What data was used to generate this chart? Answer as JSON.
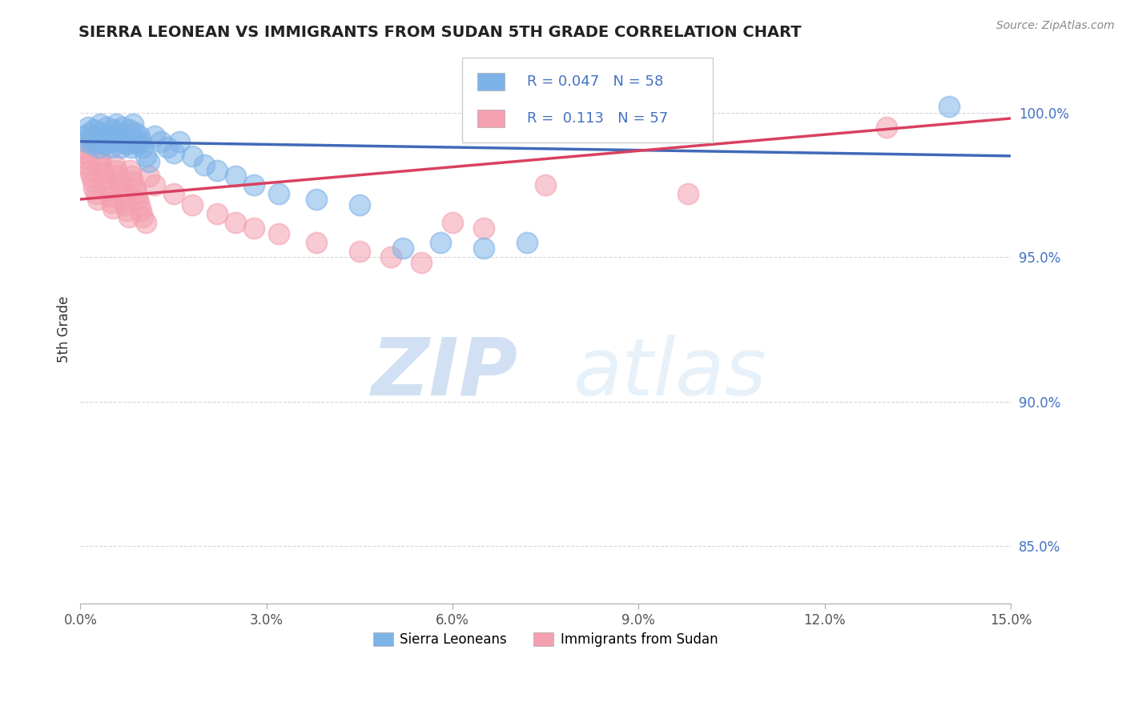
{
  "title": "SIERRA LEONEAN VS IMMIGRANTS FROM SUDAN 5TH GRADE CORRELATION CHART",
  "source": "Source: ZipAtlas.com",
  "ylabel": "5th Grade",
  "xlim": [
    0.0,
    15.0
  ],
  "ylim": [
    83.0,
    102.0
  ],
  "yticks": [
    85.0,
    90.0,
    95.0,
    100.0
  ],
  "ytick_labels": [
    "85.0%",
    "90.0%",
    "95.0%",
    "100.0%"
  ],
  "xticks": [
    0.0,
    3.0,
    6.0,
    9.0,
    12.0,
    15.0
  ],
  "xtick_labels": [
    "0.0%",
    "3.0%",
    "6.0%",
    "9.0%",
    "12.0%",
    "15.0%"
  ],
  "legend_r_blue": "0.047",
  "legend_n_blue": "58",
  "legend_r_pink": "0.113",
  "legend_n_pink": "57",
  "blue_color": "#7EB3E8",
  "pink_color": "#F4A0B0",
  "blue_line_color": "#4169B8",
  "pink_line_color": "#D94060",
  "watermark_zip": "ZIP",
  "watermark_atlas": "atlas",
  "blue_scatter_x": [
    0.05,
    0.1,
    0.12,
    0.15,
    0.18,
    0.2,
    0.22,
    0.25,
    0.28,
    0.3,
    0.32,
    0.35,
    0.38,
    0.4,
    0.42,
    0.45,
    0.48,
    0.5,
    0.52,
    0.55,
    0.58,
    0.6,
    0.62,
    0.65,
    0.68,
    0.7,
    0.72,
    0.75,
    0.78,
    0.8,
    0.82,
    0.85,
    0.88,
    0.9,
    0.92,
    0.95,
    0.98,
    1.0,
    1.05,
    1.1,
    1.2,
    1.3,
    1.4,
    1.5,
    1.6,
    1.8,
    2.0,
    2.2,
    2.5,
    2.8,
    3.2,
    3.8,
    4.5,
    5.2,
    5.8,
    6.5,
    7.2,
    14.0
  ],
  "blue_scatter_y": [
    99.2,
    99.0,
    99.5,
    99.3,
    99.1,
    98.9,
    99.4,
    99.2,
    99.0,
    98.8,
    99.6,
    99.3,
    99.1,
    98.9,
    99.5,
    99.2,
    99.0,
    98.8,
    99.4,
    99.1,
    99.6,
    99.3,
    99.0,
    98.8,
    99.5,
    99.2,
    99.0,
    98.9,
    99.4,
    99.1,
    98.8,
    99.6,
    99.3,
    99.0,
    98.9,
    99.2,
    99.0,
    98.8,
    98.5,
    98.3,
    99.2,
    99.0,
    98.8,
    98.6,
    99.0,
    98.5,
    98.2,
    98.0,
    97.8,
    97.5,
    97.2,
    97.0,
    96.8,
    95.3,
    95.5,
    95.3,
    95.5,
    100.2
  ],
  "pink_scatter_x": [
    0.05,
    0.08,
    0.1,
    0.12,
    0.15,
    0.18,
    0.2,
    0.22,
    0.25,
    0.28,
    0.3,
    0.32,
    0.35,
    0.38,
    0.4,
    0.42,
    0.45,
    0.48,
    0.5,
    0.52,
    0.55,
    0.58,
    0.6,
    0.62,
    0.65,
    0.68,
    0.7,
    0.72,
    0.75,
    0.78,
    0.8,
    0.82,
    0.85,
    0.88,
    0.9,
    0.92,
    0.95,
    0.98,
    1.0,
    1.05,
    1.1,
    1.2,
    1.5,
    1.8,
    2.2,
    2.5,
    2.8,
    3.2,
    3.8,
    4.5,
    5.0,
    5.5,
    6.0,
    6.5,
    7.5,
    9.8,
    13.0
  ],
  "pink_scatter_y": [
    98.8,
    98.6,
    98.4,
    98.2,
    98.0,
    97.8,
    97.6,
    97.4,
    97.2,
    97.0,
    98.5,
    98.3,
    98.1,
    97.9,
    97.7,
    97.5,
    97.3,
    97.1,
    96.9,
    96.7,
    98.2,
    98.0,
    97.8,
    97.6,
    97.4,
    97.2,
    97.0,
    96.8,
    96.6,
    96.4,
    98.0,
    97.8,
    97.6,
    97.4,
    97.2,
    97.0,
    96.8,
    96.6,
    96.4,
    96.2,
    97.8,
    97.5,
    97.2,
    96.8,
    96.5,
    96.2,
    96.0,
    95.8,
    95.5,
    95.2,
    95.0,
    94.8,
    96.2,
    96.0,
    97.5,
    97.2,
    99.5
  ],
  "blue_line_x": [
    0.0,
    15.0
  ],
  "blue_line_y": [
    99.0,
    98.5
  ],
  "pink_line_x": [
    0.0,
    15.0
  ],
  "pink_line_y": [
    97.0,
    99.8
  ]
}
